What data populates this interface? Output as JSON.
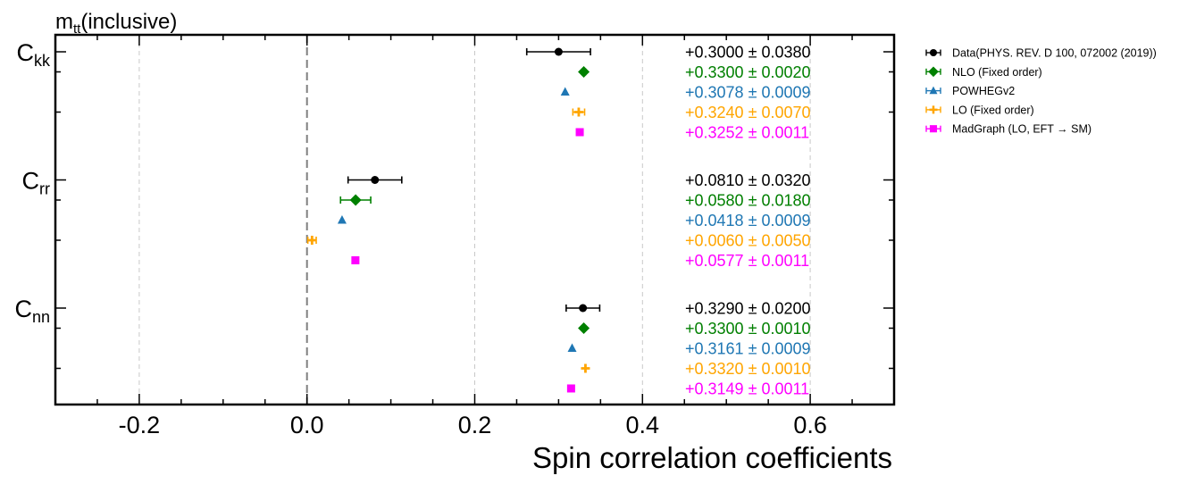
{
  "chart_data": {
    "type": "scatter",
    "title_main": "m",
    "title_sub": "tt",
    "title_suffix": "(inclusive)",
    "xlabel": "Spin correlation coefficients",
    "xlim": [
      -0.3,
      0.7
    ],
    "xticks": [
      -0.2,
      0.0,
      0.2,
      0.4,
      0.6
    ],
    "xtick_labels": [
      "-0.2",
      "0.0",
      "0.2",
      "0.4",
      "0.6"
    ],
    "grid_x": true,
    "reference_line_x": 0.0,
    "legend_position": "outside-top-right",
    "groups": [
      {
        "main": "C",
        "sub": "kk"
      },
      {
        "main": "C",
        "sub": "rr"
      },
      {
        "main": "C",
        "sub": "nn"
      }
    ],
    "series": [
      {
        "name": "Data(PHYS. REV. D 100, 072002 (2019))",
        "color": "#000000",
        "marker": "circle",
        "values": [
          0.3,
          0.081,
          0.329
        ],
        "errors": [
          0.038,
          0.032,
          0.02
        ],
        "labels": [
          "+0.3000 ± 0.0380",
          "+0.0810 ± 0.0320",
          "+0.3290 ± 0.0200"
        ]
      },
      {
        "name": "NLO (Fixed order)",
        "color": "#008000",
        "marker": "diamond",
        "values": [
          0.33,
          0.058,
          0.33
        ],
        "errors": [
          0.002,
          0.018,
          0.001
        ],
        "labels": [
          "+0.3300 ± 0.0020",
          "+0.0580 ± 0.0180",
          "+0.3300 ± 0.0010"
        ]
      },
      {
        "name": "POWHEGv2",
        "color": "#1f77b4",
        "marker": "triangle",
        "values": [
          0.3078,
          0.0418,
          0.3161
        ],
        "errors": [
          0.0009,
          0.0009,
          0.0009
        ],
        "labels": [
          "+0.3078 ± 0.0009",
          "+0.0418 ± 0.0009",
          "+0.3161 ± 0.0009"
        ]
      },
      {
        "name": "LO (Fixed order)",
        "color": "#ffa500",
        "marker": "plus",
        "values": [
          0.324,
          0.006,
          0.332
        ],
        "errors": [
          0.007,
          0.005,
          0.001
        ],
        "labels": [
          "+0.3240 ± 0.0070",
          "+0.0060 ± 0.0050",
          "+0.3320 ± 0.0010"
        ]
      },
      {
        "name": "MadGraph (LO, EFT → SM)",
        "color": "#ff00ff",
        "marker": "square",
        "values": [
          0.3252,
          0.0577,
          0.3149
        ],
        "errors": [
          0.0011,
          0.0011,
          0.0011
        ],
        "labels": [
          "+0.3252 ± 0.0011",
          "+0.0577 ± 0.0011",
          "+0.3149 ± 0.0011"
        ]
      }
    ]
  }
}
